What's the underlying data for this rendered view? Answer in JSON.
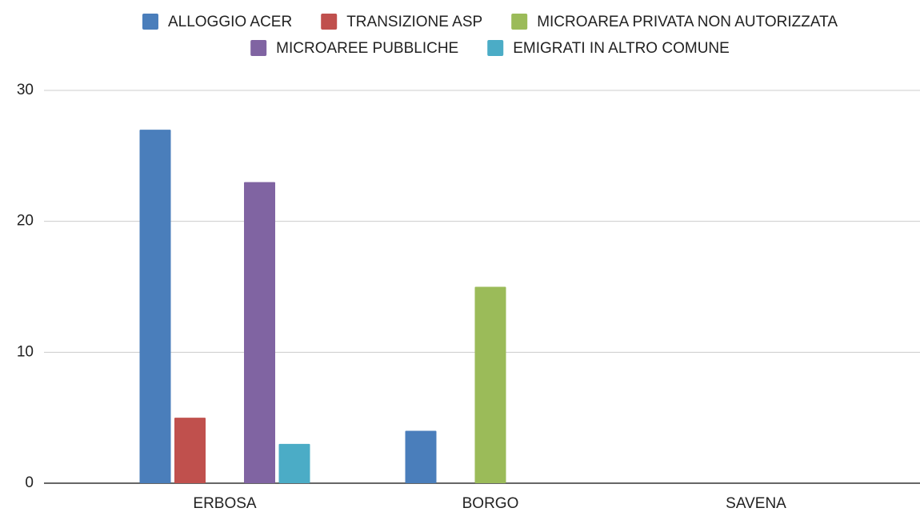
{
  "chart_data": {
    "type": "bar",
    "categories": [
      "ERBOSA",
      "BORGO",
      "SAVENA"
    ],
    "series": [
      {
        "name": "ALLOGGIO ACER",
        "color": "#4a7ebb",
        "values": [
          27,
          4,
          0
        ]
      },
      {
        "name": "TRANSIZIONE ASP",
        "color": "#c0504d",
        "values": [
          5,
          0,
          0
        ]
      },
      {
        "name": "MICROAREA PRIVATA NON AUTORIZZATA",
        "color": "#9bbb59",
        "values": [
          0,
          15,
          0
        ]
      },
      {
        "name": "MICROAREE PUBBLICHE",
        "color": "#8064a2",
        "values": [
          23,
          0,
          0
        ]
      },
      {
        "name": "EMIGRATI IN ALTRO COMUNE",
        "color": "#4bacc6",
        "values": [
          3,
          0,
          0
        ]
      }
    ],
    "ylim": [
      0,
      30
    ],
    "yticks": [
      0,
      10,
      20,
      30
    ],
    "grid": true,
    "legend": "top"
  }
}
